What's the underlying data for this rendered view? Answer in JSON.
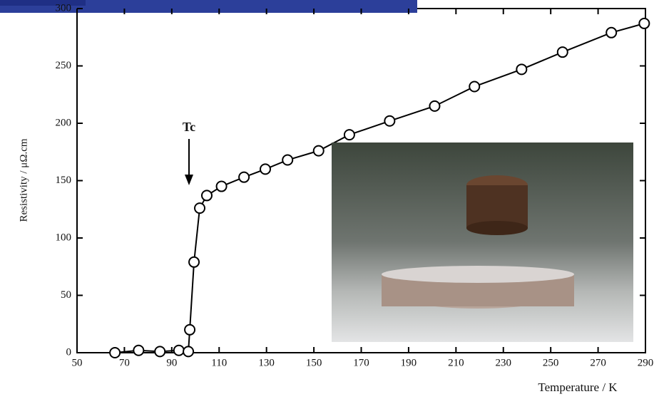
{
  "chart_data": {
    "type": "line",
    "x_label": "Temperature / K",
    "y_label": "Resistivity / μΩ.cm",
    "annotation": "Tc",
    "color": "#000000",
    "x": [
      66,
      76,
      85,
      93,
      97,
      97.6,
      99.4,
      101.8,
      104.8,
      111,
      120.5,
      129.5,
      138.9,
      152,
      165,
      182,
      201,
      217.8,
      237.7,
      255,
      275.6,
      289.5
    ],
    "values": [
      0,
      2,
      1,
      2,
      1,
      20,
      79,
      126,
      137,
      145,
      153,
      160,
      168,
      176,
      190,
      202,
      215,
      232,
      247,
      262,
      279,
      287
    ],
    "xlim": [
      50,
      290
    ],
    "ylim": [
      0,
      300
    ],
    "xticks": [
      50,
      70,
      90,
      110,
      130,
      150,
      170,
      190,
      210,
      230,
      250,
      270,
      290
    ],
    "yticks": [
      0,
      50,
      100,
      150,
      200,
      250,
      300
    ]
  }
}
